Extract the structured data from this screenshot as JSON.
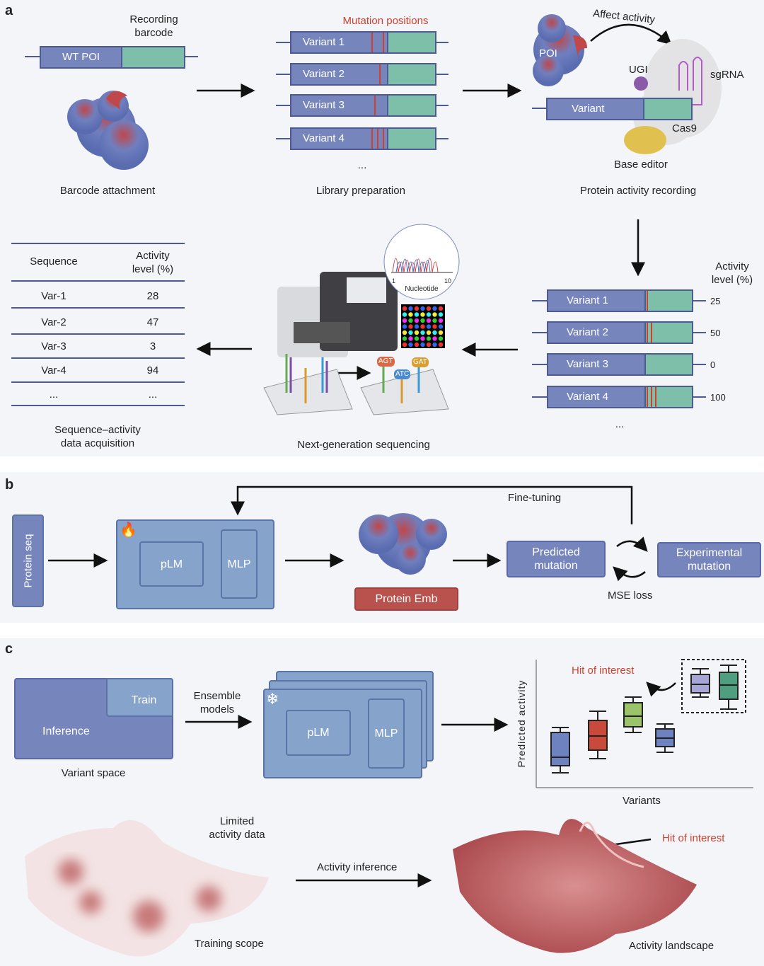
{
  "panels": {
    "a": "a",
    "b": "b",
    "c": "c"
  },
  "a": {
    "recording_barcode": "Recording\nbarcode",
    "wt_poi": "WT POI",
    "mutation_positions": "Mutation positions",
    "variants": [
      "Variant 1",
      "Variant 2",
      "Variant 3",
      "Variant 4"
    ],
    "ellipsis": "...",
    "poi": "POI",
    "affect_activity": "Affect activity",
    "ugi": "UGI",
    "sgrna": "sgRNA",
    "variant": "Variant",
    "cas9": "Cas9",
    "base_editor": "Base editor",
    "steps": [
      "Barcode attachment",
      "Library preparation",
      "Protein activity recording"
    ],
    "activity_header": "Activity\nlevel (%)",
    "activity_levels": [
      "25",
      "50",
      "0",
      "100"
    ],
    "nucleotide": "Nucleotide",
    "chrom_ticks": [
      "1",
      "10"
    ],
    "ngs": "Next-generation sequencing",
    "bases": [
      "AGT",
      "GAT",
      "ATC"
    ],
    "table": {
      "headers": [
        "Sequence",
        "Activity\nlevel (%)"
      ],
      "rows": [
        [
          "Var-1",
          "28"
        ],
        [
          "Var-2",
          "47"
        ],
        [
          "Var-3",
          "3"
        ],
        [
          "Var-4",
          "94"
        ],
        [
          "...",
          "..."
        ]
      ]
    },
    "sad": "Sequence–activity\ndata acquisition"
  },
  "b": {
    "protein_seq": "Protein seq",
    "plm": "pLM",
    "mlp": "MLP",
    "fine_tuning": "Fine-tuning",
    "protein_emb": "Protein Emb",
    "predicted": "Predicted\nmutation",
    "experimental": "Experimental\nmutation",
    "mse": "MSE loss",
    "icon": "fire-icon"
  },
  "c": {
    "train": "Train",
    "inference": "Inference",
    "variant_space": "Variant space",
    "ensemble": "Ensemble\nmodels",
    "plm": "pLM",
    "mlp": "MLP",
    "icon": "snowflake-icon",
    "ylabel": "Predicted activity",
    "xlabel": "Variants",
    "hit": "Hit of interest",
    "limited": "Limited\nactivity data",
    "activity_inference": "Activity inference",
    "training_scope": "Training scope",
    "activity_landscape": "Activity landscape"
  },
  "colors": {
    "bar": "#7785bd",
    "barcode": "#7dbfa8",
    "mutation": "#d0402f",
    "box": "#86a3cc",
    "emb": "#b9524c"
  }
}
